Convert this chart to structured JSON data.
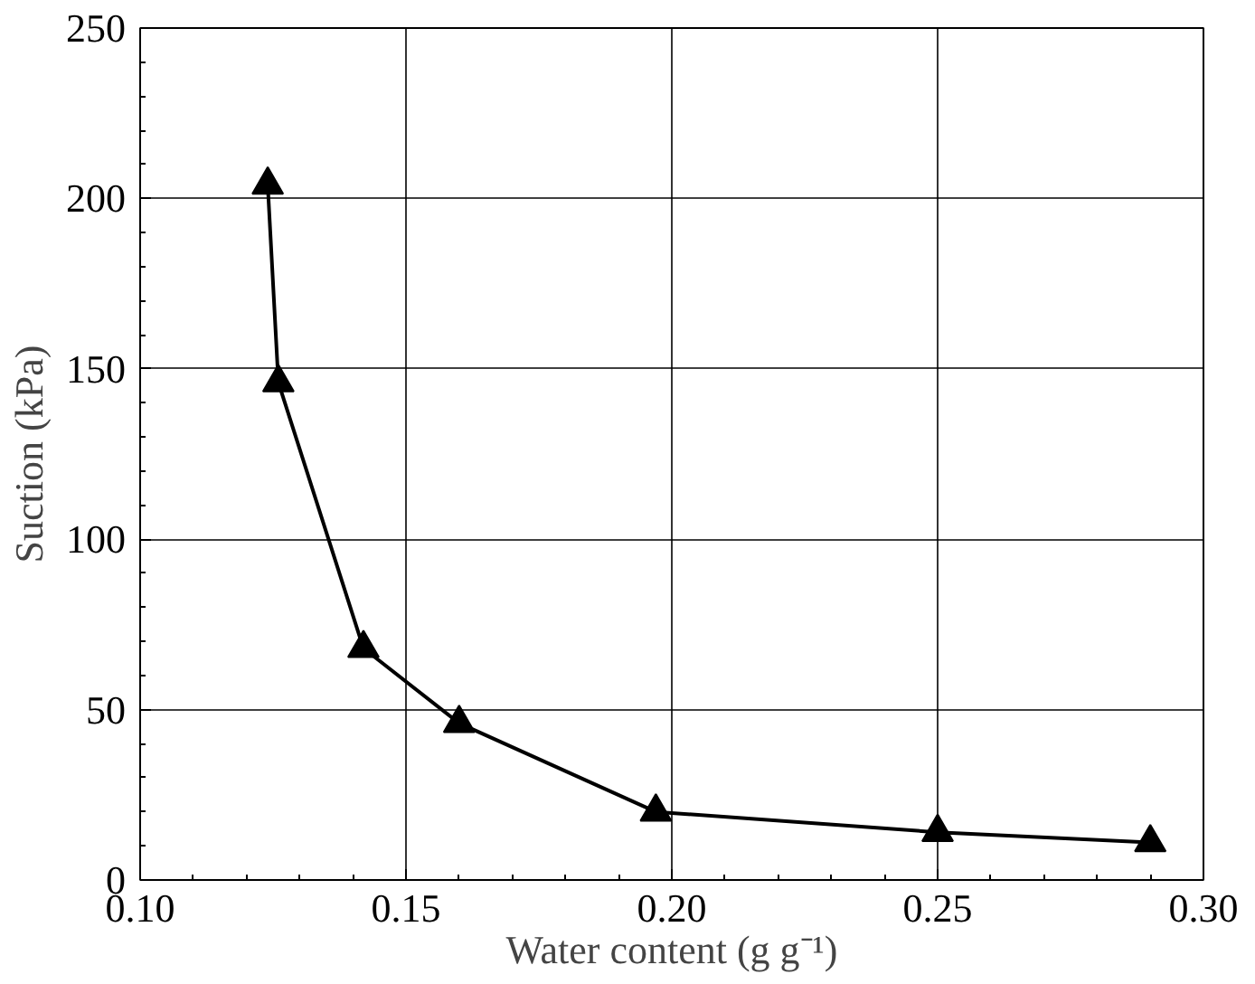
{
  "chart_data": {
    "type": "line",
    "xlabel": "Water content (g g⁻¹)",
    "ylabel": "Suction (kPa)",
    "x": [
      0.124,
      0.126,
      0.142,
      0.16,
      0.197,
      0.25,
      0.29
    ],
    "series": [
      {
        "color": "#000000",
        "values": [
          204,
          146,
          68,
          46,
          20,
          14,
          11
        ]
      }
    ],
    "xlim": [
      0.1,
      0.3
    ],
    "ylim": [
      0,
      250
    ],
    "xticks": [
      {
        "value": 0.1,
        "label": "0.10"
      },
      {
        "value": 0.15,
        "label": "0.15"
      },
      {
        "value": 0.2,
        "label": "0.20"
      },
      {
        "value": 0.25,
        "label": "0.25"
      },
      {
        "value": 0.3,
        "label": "0.30"
      }
    ],
    "yticks": [
      0,
      50,
      100,
      150,
      200,
      250
    ],
    "grid": true,
    "marker": "triangle",
    "line_style": "solid"
  }
}
